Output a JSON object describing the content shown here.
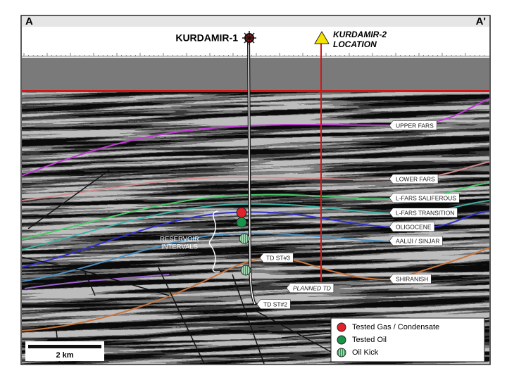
{
  "section_ends": {
    "left": "A",
    "right": "A'"
  },
  "wells": {
    "kurdamir_1": "KURDAMIR-1",
    "kurdamir_2": [
      "KURDAMIR-2",
      "LOCATION"
    ]
  },
  "horizons": [
    "UPPER FARS",
    "LOWER FARS",
    "L-FARS SALIFEROUS",
    "L-FARS TRANSITION",
    "OLIGOCENE",
    "AALIJI / SINJAR",
    "SHIRANISH"
  ],
  "annotations": {
    "reservoir_intervals": [
      "RESERVOIR",
      "INTERVALS"
    ],
    "td_st3": "TD ST#3",
    "td_st2": "TD ST#2",
    "planned_td": "PLANNED TD"
  },
  "scale_bar": "2 km",
  "legend": [
    "Tested Gas / Condensate",
    "Tested Oil",
    "Oil Kick"
  ]
}
